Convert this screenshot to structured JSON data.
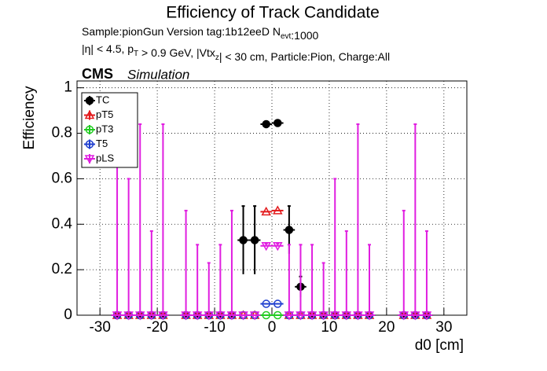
{
  "chart_data": {
    "type": "errorbar",
    "title": "Efficiency of Track Candidate",
    "subtitle_lines": [
      [
        "Sample:pionGun   Version tag:1b12eeD  N",
        {
          "sub": "evt"
        },
        ":1000"
      ],
      [
        "|η| < 4.5, p",
        {
          "sub": "T"
        },
        " > 0.9 GeV, |Vtx",
        {
          "sub": "z"
        },
        "| < 30 cm, Particle:Pion, Charge:All"
      ]
    ],
    "experiment": "CMS",
    "experiment_note": "Simulation",
    "xlabel": "d0 [cm]",
    "ylabel": "Efficiency",
    "x": [
      -27,
      -25,
      -23,
      -21,
      -19,
      -15,
      -13,
      -11,
      -9,
      -7,
      -5,
      -3,
      -1,
      1,
      3,
      5,
      7,
      9,
      11,
      13,
      15,
      17,
      23,
      25,
      27
    ],
    "xerr": 1,
    "series": [
      {
        "name": "TC",
        "color": "#000000",
        "marker": "filled-circle",
        "values": [
          0,
          0,
          0,
          0,
          0,
          0,
          0,
          0,
          0,
          0,
          0.33,
          0.33,
          0.84,
          0.845,
          0.375,
          0.125,
          0,
          0,
          0,
          0,
          0,
          0,
          0,
          0,
          0
        ],
        "err": [
          0,
          0,
          0,
          0,
          0,
          0,
          0,
          0,
          0,
          0,
          0.15,
          0.15,
          0.01,
          0.01,
          0.105,
          0.045,
          0,
          0,
          0,
          0,
          0,
          0,
          0,
          0,
          0
        ]
      },
      {
        "name": "pT5",
        "color": "#e31a1c",
        "marker": "open-triangle",
        "values": [
          0,
          0,
          0,
          0,
          0,
          0,
          0,
          0,
          0,
          0,
          0,
          0,
          0.455,
          0.46,
          0,
          0,
          0,
          0,
          0,
          0,
          0,
          0,
          0,
          0,
          0
        ]
      },
      {
        "name": "pT3",
        "color": "#22cc22",
        "marker": "open-circle",
        "values": [
          0,
          0,
          0,
          0,
          0,
          0,
          0,
          0,
          0,
          0,
          0,
          0,
          0,
          0,
          0,
          0,
          0,
          0,
          0,
          0,
          0,
          0,
          0,
          0,
          0
        ]
      },
      {
        "name": "T5",
        "color": "#1f3fcf",
        "marker": "open-circle",
        "values": [
          0,
          0,
          0,
          0,
          0,
          0,
          0,
          0,
          0,
          0,
          0,
          0,
          0.05,
          0.05,
          0,
          0,
          0,
          0,
          0,
          0,
          0,
          0,
          0,
          0,
          0
        ]
      },
      {
        "name": "pLS",
        "color": "#e01ee0",
        "marker": "open-triangle-down",
        "values": [
          0,
          0,
          0,
          0,
          0,
          0,
          0,
          0,
          0,
          0,
          0,
          0,
          0.305,
          0.305,
          0,
          0,
          0,
          0,
          0,
          0,
          0,
          0,
          0,
          0,
          0
        ],
        "err_up": [
          0.84,
          0.6,
          0.84,
          0.37,
          0.84,
          0.46,
          0.31,
          0.23,
          0.31,
          0.46,
          0,
          0,
          0.01,
          0.01,
          0.31,
          0.31,
          0.31,
          0.23,
          0.6,
          0.37,
          0.84,
          0.31,
          0.46,
          0.84,
          0.37
        ]
      }
    ],
    "xlim": [
      -34,
      34
    ],
    "ylim": [
      0,
      1.03
    ],
    "xticks": [
      -30,
      -20,
      -10,
      0,
      10,
      20,
      30
    ],
    "yticks": [
      0,
      0.2,
      0.4,
      0.6,
      0.8,
      1
    ],
    "grid": true,
    "legend": "upper left"
  }
}
